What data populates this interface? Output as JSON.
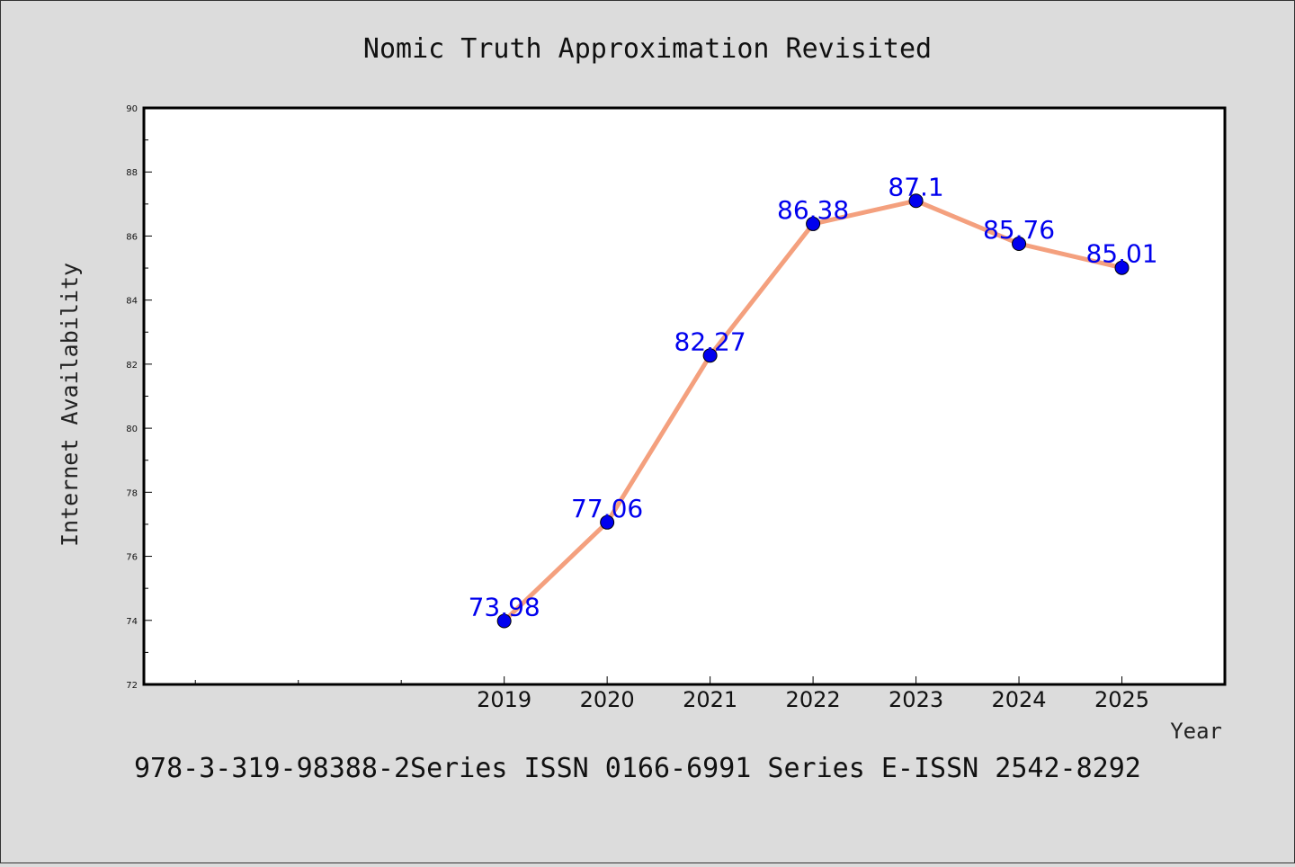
{
  "chart_data": {
    "type": "line",
    "title": "Nomic Truth Approximation Revisited",
    "xlabel": "Year",
    "ylabel": "Internet Availability",
    "x": [
      2019,
      2020,
      2021,
      2022,
      2023,
      2024,
      2025
    ],
    "categories": [
      "2019",
      "2020",
      "2021",
      "2022",
      "2023",
      "2024",
      "2025"
    ],
    "series": [
      {
        "values": [
          73.98,
          77.06,
          82.27,
          86.38,
          87.1,
          85.76,
          85.01
        ],
        "data_labels": [
          "73.98",
          "77.06",
          "82.27",
          "86.38",
          "87.1",
          "85.76",
          "85.01"
        ]
      }
    ],
    "xlim": [
      2015.5,
      2026
    ],
    "ylim": [
      72,
      90
    ],
    "y_ticks": [
      "72",
      "74",
      "76",
      "78",
      "80",
      "82",
      "84",
      "86",
      "88",
      "90"
    ],
    "grid": false,
    "legend": "none",
    "colors": {
      "line": "#f4a07e",
      "marker": "#0000ee",
      "data_label": "#0000ee",
      "background": "#dcdcdc",
      "plot_background": "#ffffff"
    }
  },
  "footer": {
    "text": "978-3-319-98388-2Series ISSN 0166-6991 Series E-ISSN 2542-8292"
  }
}
